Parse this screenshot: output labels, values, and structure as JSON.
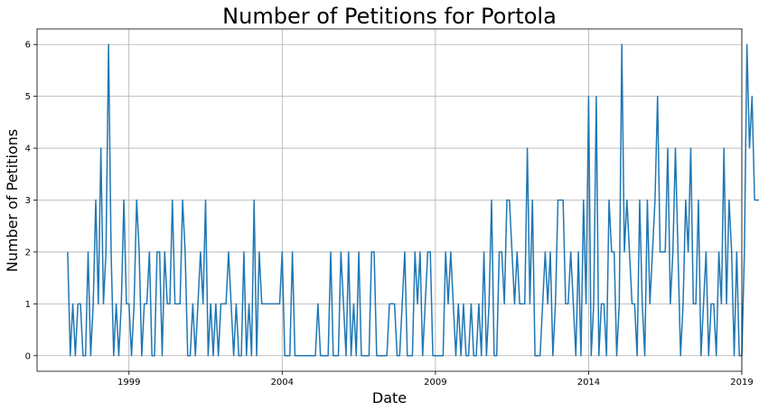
{
  "chart_data": {
    "type": "line",
    "title": "Number of Petitions for Portola",
    "xlabel": "Date",
    "ylabel": "Number of Petitions",
    "xlim": [
      "1996-01",
      "2019-01"
    ],
    "ylim": [
      -0.3,
      6.3
    ],
    "x_ticks": [
      "1999",
      "2004",
      "2009",
      "2014",
      "2019"
    ],
    "y_ticks": [
      "0",
      "1",
      "2",
      "3",
      "4",
      "5",
      "6"
    ],
    "grid": true,
    "series_color": "#1f77b4",
    "series": [
      {
        "start": "1997-01",
        "frequency": "monthly",
        "values": [
          2,
          0,
          1,
          0,
          1,
          1,
          0,
          0,
          2,
          0,
          1,
          3,
          1,
          4,
          1,
          2,
          6,
          2,
          0,
          1,
          0,
          1,
          3,
          1,
          1,
          0,
          1,
          3,
          2,
          0,
          1,
          1,
          2,
          0,
          0,
          2,
          2,
          0,
          2,
          1,
          1,
          3,
          1,
          1,
          1,
          3,
          2,
          0,
          0,
          1,
          0,
          1,
          2,
          1,
          3,
          0,
          1,
          0,
          1,
          0,
          1,
          1,
          1,
          2,
          1,
          0,
          1,
          0,
          0,
          2,
          0,
          1,
          0,
          3,
          0,
          2,
          1,
          1,
          1,
          1,
          1,
          1,
          1,
          1,
          2,
          0,
          0,
          0,
          2,
          0,
          0,
          0,
          0,
          0,
          0,
          0,
          0,
          0,
          1,
          0,
          0,
          0,
          0,
          2,
          0,
          0,
          0,
          2,
          1,
          0,
          2,
          0,
          1,
          0,
          2,
          0,
          0,
          0,
          0,
          2,
          2,
          0,
          0,
          0,
          0,
          0,
          1,
          1,
          1,
          0,
          0,
          1,
          2,
          0,
          0,
          0,
          2,
          1,
          2,
          0,
          1,
          2,
          2,
          0,
          0,
          0,
          0,
          0,
          2,
          1,
          2,
          1,
          0,
          1,
          0,
          1,
          0,
          0,
          1,
          0,
          0,
          1,
          0,
          2,
          0,
          1,
          3,
          0,
          0,
          2,
          2,
          1,
          3,
          3,
          2,
          1,
          2,
          1,
          1,
          1,
          4,
          1,
          3,
          0,
          0,
          0,
          1,
          2,
          1,
          2,
          0,
          1,
          3,
          3,
          3,
          1,
          1,
          2,
          1,
          0,
          2,
          0,
          3,
          1,
          5,
          0,
          1,
          5,
          0,
          1,
          1,
          0,
          3,
          2,
          2,
          0,
          1,
          6,
          2,
          3,
          2,
          1,
          1,
          0,
          3,
          1,
          0,
          3,
          1,
          2,
          3,
          5,
          2,
          2,
          2,
          4,
          1,
          2,
          4,
          2,
          0,
          1,
          3,
          2,
          4,
          1,
          1,
          3,
          0,
          1,
          2,
          0,
          1,
          1,
          0,
          2,
          1,
          4,
          1,
          3,
          2,
          0,
          2,
          0,
          0,
          2,
          6,
          4,
          5,
          3,
          3,
          3,
          2,
          4
        ]
      }
    ]
  }
}
